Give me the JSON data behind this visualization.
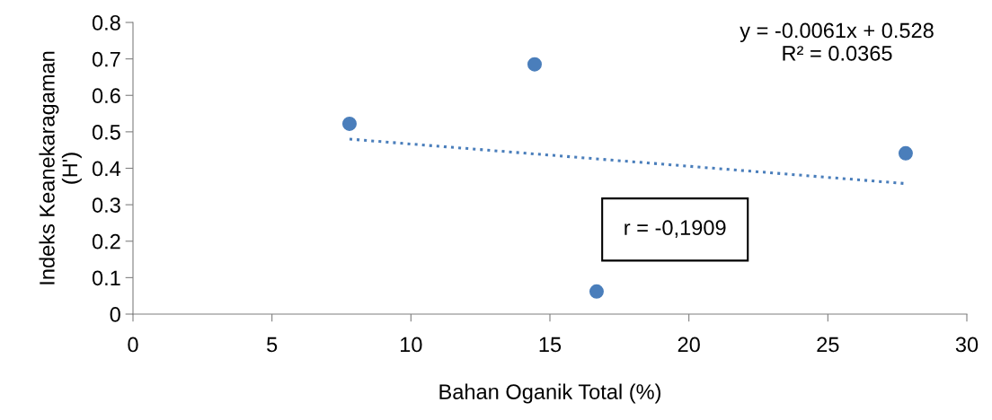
{
  "chart_data": {
    "type": "scatter",
    "xlabel": "Bahan Oganik Total (%)",
    "ylabel": "Indeks Keanekaragaman\n(H')",
    "xlim": [
      0,
      30
    ],
    "xticks": [
      0,
      5,
      10,
      15,
      20,
      25,
      30
    ],
    "ylim": [
      0,
      0.8
    ],
    "yticks": [
      0,
      0.1,
      0.2,
      0.3,
      0.4,
      0.5,
      0.6,
      0.7,
      0.8
    ],
    "grid": false,
    "legend": false,
    "series": [
      {
        "color": "#4a7ebb",
        "marker": "circle",
        "x": [
          7.79,
          14.45,
          16.68,
          27.8
        ],
        "values": [
          0.522,
          0.685,
          0.062,
          0.441
        ]
      },
      {
        "type": "line",
        "color": "#4a7ebb",
        "marker": "none",
        "line_style": "dotted",
        "x": [
          7.79,
          27.8
        ],
        "values": [
          0.48,
          0.358
        ]
      }
    ],
    "annotations": [
      "y = -0.0061x + 0.528\nR² = 0.0365",
      "r = -0,1909"
    ]
  }
}
